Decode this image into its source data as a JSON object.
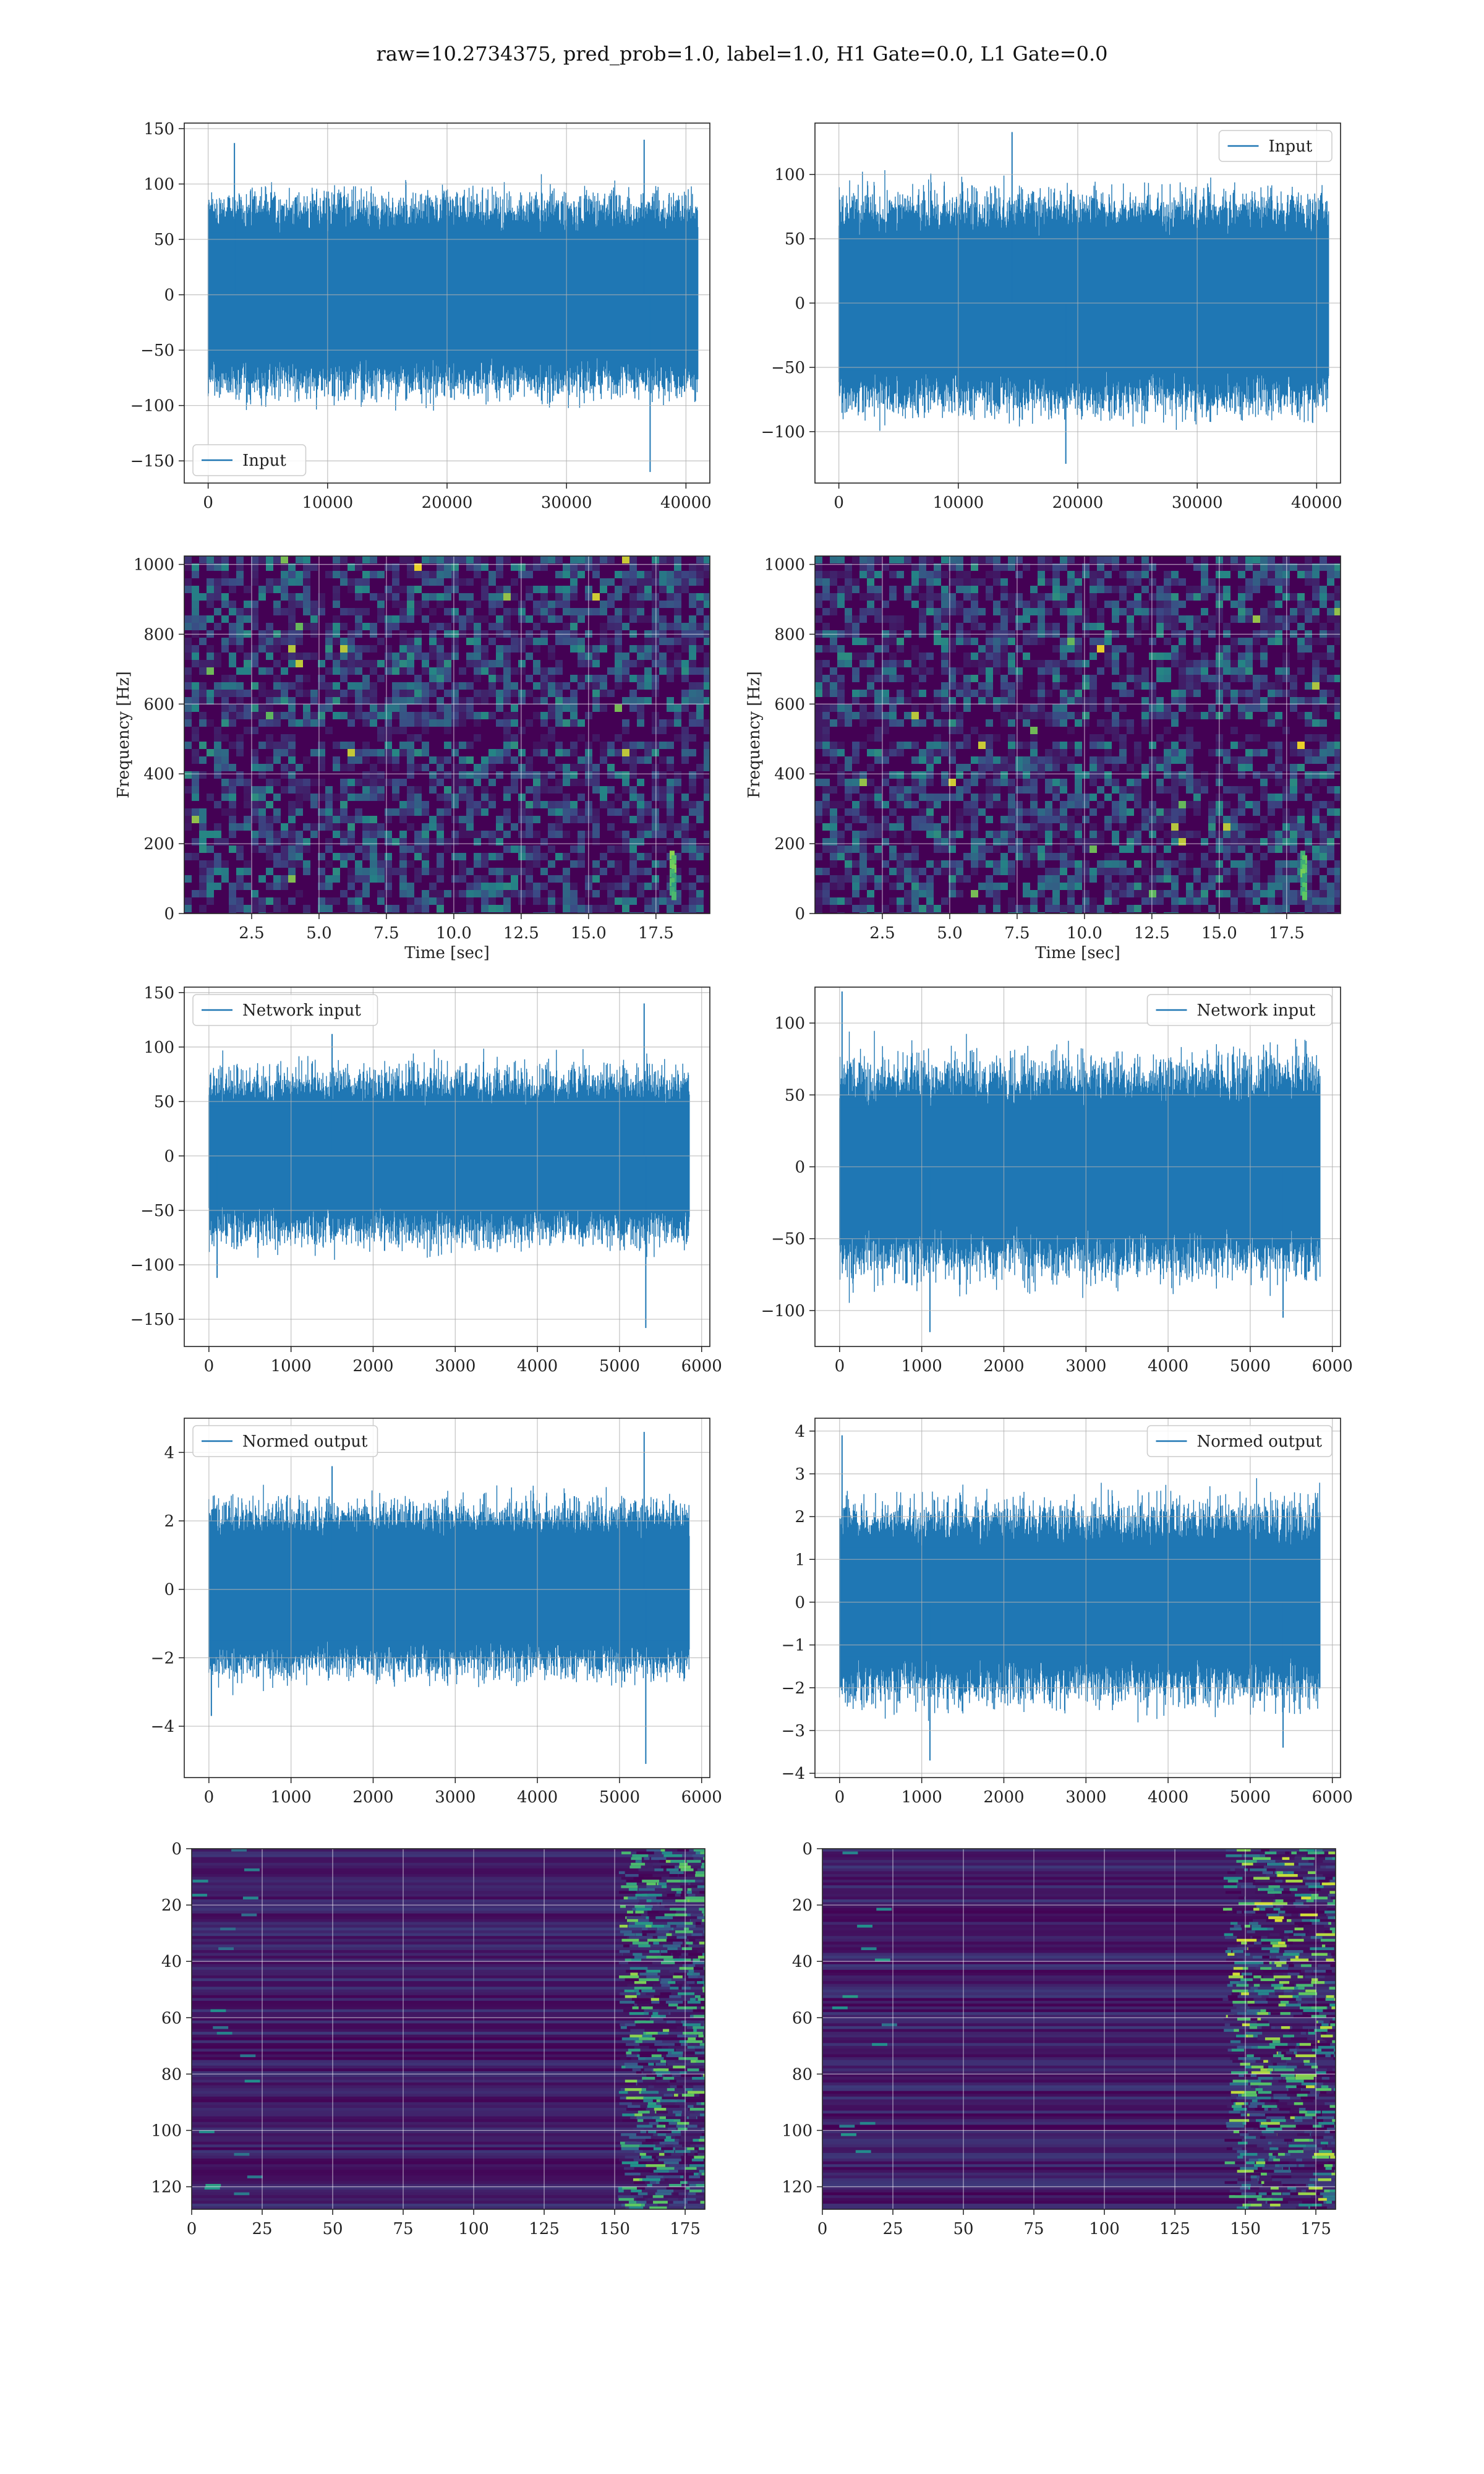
{
  "title": "raw=10.2734375, pred_prob=1.0, label=1.0, H1 Gate=0.0, L1 Gate=0.0",
  "colors": {
    "line": "#1f77b4",
    "grid": "#b0b0b0",
    "viridis_low": "#440154",
    "viridis_high": "#fde725"
  },
  "chart_data": [
    {
      "id": "r1c1",
      "type": "line",
      "legend": "Input",
      "legend_loc": "lower-left",
      "xlim": [
        -2000,
        42000
      ],
      "ylim": [
        -170,
        155
      ],
      "xticks": [
        0,
        10000,
        20000,
        30000,
        40000
      ],
      "xticklabels": [
        "0",
        "10000",
        "20000",
        "30000",
        "40000"
      ],
      "yticks": [
        150,
        100,
        50,
        0,
        -50,
        -100,
        -150
      ],
      "yticklabels": [
        "150",
        "100",
        "50",
        "0",
        "−50",
        "−100",
        "−150"
      ],
      "xlabel": "",
      "ylabel": "",
      "grid": true,
      "x_range": [
        0,
        41000
      ],
      "envelope_lo": 75,
      "envelope_hi": 105,
      "peaks": [
        [
          36500,
          140
        ],
        [
          37000,
          -160
        ],
        [
          2200,
          137
        ]
      ]
    },
    {
      "id": "r1c2",
      "type": "line",
      "legend": "Input",
      "legend_loc": "upper-right",
      "xlim": [
        -2000,
        42000
      ],
      "ylim": [
        -140,
        140
      ],
      "xticks": [
        0,
        10000,
        20000,
        30000,
        40000
      ],
      "xticklabels": [
        "0",
        "10000",
        "20000",
        "30000",
        "40000"
      ],
      "yticks": [
        100,
        50,
        0,
        -50,
        -100
      ],
      "yticklabels": [
        "100",
        "50",
        "0",
        "−50",
        "−100"
      ],
      "xlabel": "",
      "ylabel": "",
      "grid": true,
      "x_range": [
        0,
        41000
      ],
      "envelope_lo": 70,
      "envelope_hi": 100,
      "peaks": [
        [
          14500,
          133
        ],
        [
          19000,
          -125
        ]
      ]
    },
    {
      "id": "r2c1",
      "type": "heatmap",
      "xlim": [
        0,
        19.5
      ],
      "ylim": [
        0,
        1024
      ],
      "xticks": [
        2.5,
        5,
        7.5,
        10,
        12.5,
        15,
        17.5
      ],
      "xticklabels": [
        "2.5",
        "5.0",
        "7.5",
        "10.0",
        "12.5",
        "15.0",
        "17.5"
      ],
      "yticks": [
        0,
        200,
        400,
        600,
        800,
        1000
      ],
      "yticklabels": [
        "0",
        "200",
        "400",
        "600",
        "800",
        "1000"
      ],
      "xlabel": "Time [sec]",
      "ylabel": "Frequency [Hz]",
      "grid": true
    },
    {
      "id": "r2c2",
      "type": "heatmap",
      "xlim": [
        0,
        19.5
      ],
      "ylim": [
        0,
        1024
      ],
      "xticks": [
        2.5,
        5,
        7.5,
        10,
        12.5,
        15,
        17.5
      ],
      "xticklabels": [
        "2.5",
        "5.0",
        "7.5",
        "10.0",
        "12.5",
        "15.0",
        "17.5"
      ],
      "yticks": [
        0,
        200,
        400,
        600,
        800,
        1000
      ],
      "yticklabels": [
        "0",
        "200",
        "400",
        "600",
        "800",
        "1000"
      ],
      "xlabel": "Time [sec]",
      "ylabel": "Frequency [Hz]",
      "grid": true
    },
    {
      "id": "r3c1",
      "type": "line",
      "legend": "Network input",
      "legend_loc": "upper-left",
      "xlim": [
        -300,
        6100
      ],
      "ylim": [
        -175,
        155
      ],
      "xticks": [
        0,
        1000,
        2000,
        3000,
        4000,
        5000,
        6000
      ],
      "xticklabels": [
        "0",
        "1000",
        "2000",
        "3000",
        "4000",
        "5000",
        "6000"
      ],
      "yticks": [
        150,
        100,
        50,
        0,
        -50,
        -100,
        -150
      ],
      "yticklabels": [
        "150",
        "100",
        "50",
        "0",
        "−50",
        "−100",
        "−150"
      ],
      "xlabel": "",
      "ylabel": "",
      "grid": true,
      "x_range": [
        0,
        5850
      ],
      "envelope_lo": 60,
      "envelope_hi": 95,
      "peaks": [
        [
          5300,
          140
        ],
        [
          5320,
          -158
        ],
        [
          100,
          -112
        ],
        [
          1500,
          112
        ]
      ]
    },
    {
      "id": "r3c2",
      "type": "line",
      "legend": "Network input",
      "legend_loc": "upper-right",
      "xlim": [
        -300,
        6100
      ],
      "ylim": [
        -125,
        125
      ],
      "xticks": [
        0,
        1000,
        2000,
        3000,
        4000,
        5000,
        6000
      ],
      "xticklabels": [
        "0",
        "1000",
        "2000",
        "3000",
        "4000",
        "5000",
        "6000"
      ],
      "yticks": [
        100,
        50,
        0,
        -50,
        -100
      ],
      "yticklabels": [
        "100",
        "50",
        "0",
        "−50",
        "−100"
      ],
      "xlabel": "",
      "ylabel": "",
      "grid": true,
      "x_range": [
        0,
        5850
      ],
      "envelope_lo": 55,
      "envelope_hi": 90,
      "peaks": [
        [
          30,
          122
        ],
        [
          1100,
          -115
        ],
        [
          5400,
          -105
        ]
      ]
    },
    {
      "id": "r4c1",
      "type": "line",
      "legend": "Normed output",
      "legend_loc": "upper-left",
      "xlim": [
        -300,
        6100
      ],
      "ylim": [
        -5.5,
        5.0
      ],
      "xticks": [
        0,
        1000,
        2000,
        3000,
        4000,
        5000,
        6000
      ],
      "xticklabels": [
        "0",
        "1000",
        "2000",
        "3000",
        "4000",
        "5000",
        "6000"
      ],
      "yticks": [
        4,
        2,
        0,
        -2,
        -4
      ],
      "yticklabels": [
        "4",
        "2",
        "0",
        "−2",
        "−4"
      ],
      "xlabel": "",
      "ylabel": "",
      "grid": true,
      "x_range": [
        0,
        5850
      ],
      "envelope_lo": 2.0,
      "envelope_hi": 3.0,
      "peaks": [
        [
          5300,
          4.6
        ],
        [
          5320,
          -5.1
        ],
        [
          1500,
          3.6
        ],
        [
          30,
          -3.7
        ]
      ]
    },
    {
      "id": "r4c2",
      "type": "line",
      "legend": "Normed output",
      "legend_loc": "upper-right",
      "xlim": [
        -300,
        6100
      ],
      "ylim": [
        -4.1,
        4.3
      ],
      "xticks": [
        0,
        1000,
        2000,
        3000,
        4000,
        5000,
        6000
      ],
      "xticklabels": [
        "0",
        "1000",
        "2000",
        "3000",
        "4000",
        "5000",
        "6000"
      ],
      "yticks": [
        4,
        3,
        2,
        1,
        0,
        -1,
        -2,
        -3,
        -4
      ],
      "yticklabels": [
        "4",
        "3",
        "2",
        "1",
        "0",
        "−1",
        "−2",
        "−3",
        "−4"
      ],
      "xlabel": "",
      "ylabel": "",
      "grid": true,
      "x_range": [
        0,
        5850
      ],
      "envelope_lo": 1.7,
      "envelope_hi": 2.8,
      "peaks": [
        [
          30,
          3.9
        ],
        [
          1100,
          -3.7
        ],
        [
          5400,
          -3.4
        ]
      ]
    },
    {
      "id": "r5c1",
      "type": "heatmap",
      "xlim": [
        0,
        182
      ],
      "ylim": [
        128,
        0
      ],
      "xticks": [
        0,
        25,
        50,
        75,
        100,
        125,
        150,
        175
      ],
      "xticklabels": [
        "0",
        "25",
        "50",
        "75",
        "100",
        "125",
        "150",
        "175"
      ],
      "yticks": [
        0,
        20,
        40,
        60,
        80,
        100,
        120
      ],
      "yticklabels": [
        "0",
        "20",
        "40",
        "60",
        "80",
        "100",
        "120"
      ],
      "xlabel": "",
      "ylabel": "",
      "grid": true
    },
    {
      "id": "r5c2",
      "type": "heatmap",
      "xlim": [
        0,
        182
      ],
      "ylim": [
        128,
        0
      ],
      "xticks": [
        0,
        25,
        50,
        75,
        100,
        125,
        150,
        175
      ],
      "xticklabels": [
        "0",
        "25",
        "50",
        "75",
        "100",
        "125",
        "150",
        "175"
      ],
      "yticks": [
        0,
        20,
        40,
        60,
        80,
        100,
        120
      ],
      "yticklabels": [
        "0",
        "20",
        "40",
        "60",
        "80",
        "100",
        "120"
      ],
      "xlabel": "",
      "ylabel": "",
      "grid": true
    }
  ]
}
